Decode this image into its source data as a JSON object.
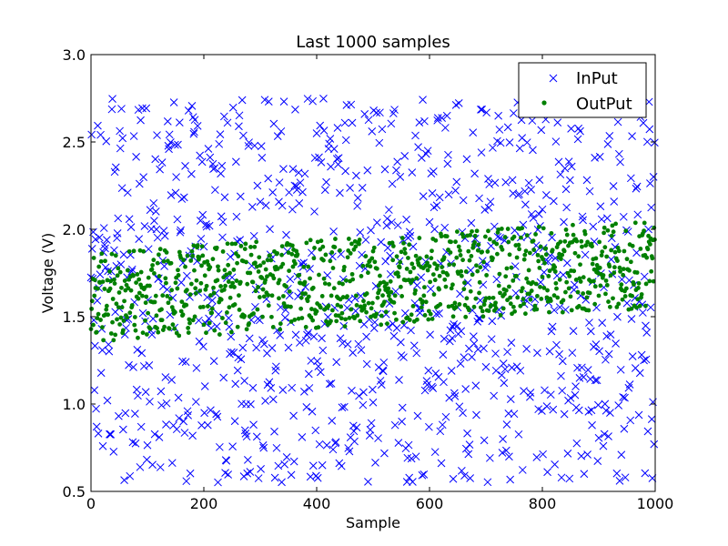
{
  "chart_data": {
    "type": "scatter",
    "title": "Last 1000 samples",
    "xlabel": "Sample",
    "ylabel": "Voltage (V)",
    "xlim": [
      0,
      1000
    ],
    "ylim": [
      0.5,
      3.0
    ],
    "xticks": [
      "0",
      "200",
      "400",
      "600",
      "800",
      "1000"
    ],
    "yticks": [
      "0.5",
      "1.0",
      "1.5",
      "2.0",
      "2.5",
      "3.0"
    ],
    "grid": false,
    "legend_position": "top-right",
    "sample_count": 1000,
    "series": [
      {
        "name": "InPut",
        "marker": "x",
        "color": "#0000ff",
        "distribution": "uniform",
        "range": [
          0.55,
          2.75
        ]
      },
      {
        "name": "OutPut",
        "marker": "dot",
        "color": "#008000",
        "distribution": "uniform-band",
        "band_start": [
          1.35,
          1.88
        ],
        "band_end": [
          1.55,
          2.05
        ]
      }
    ]
  }
}
